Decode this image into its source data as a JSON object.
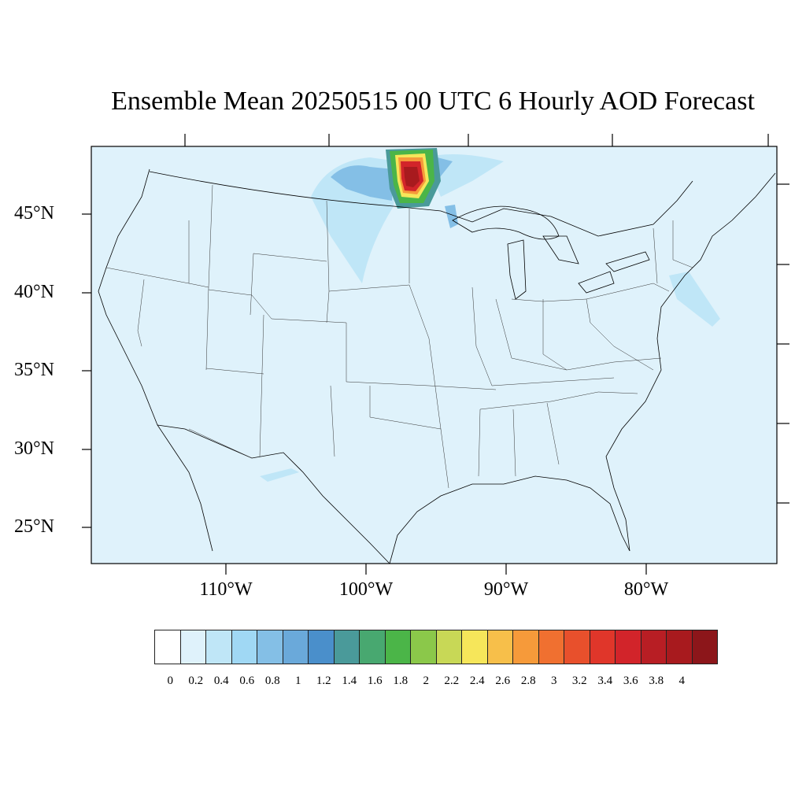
{
  "title": "Ensemble Mean 20250515 00 UTC 6 Hourly AOD Forecast",
  "latitude_labels": [
    "45°N",
    "40°N",
    "35°N",
    "30°N",
    "25°N"
  ],
  "longitude_labels": [
    "110°W",
    "100°W",
    "90°W",
    "80°W"
  ],
  "colorbar": {
    "ticks": [
      "0",
      "0.2",
      "0.4",
      "0.6",
      "0.8",
      "1",
      "1.2",
      "1.4",
      "1.6",
      "1.8",
      "2",
      "2.2",
      "2.4",
      "2.6",
      "2.8",
      "3",
      "3.2",
      "3.4",
      "3.6",
      "3.8",
      "4"
    ],
    "colors": [
      "#ffffff",
      "#dff2fb",
      "#bfe6f7",
      "#a0d8f4",
      "#84bfe6",
      "#6aa9da",
      "#4a8fcb",
      "#4a9a9a",
      "#48a870",
      "#4bb548",
      "#8bc84a",
      "#c8d856",
      "#f6e65a",
      "#f7bf4a",
      "#f69a3a",
      "#f07030",
      "#e8502c",
      "#e0362a",
      "#d2242a",
      "#b81e24",
      "#a81a1e",
      "#8c161a"
    ]
  },
  "map": {
    "background_color": "#dff2fb",
    "plume_colors": {
      "light": "#bfe6f7",
      "mid": "#84bfe6",
      "teal": "#4a9a9a",
      "green": "#4bb548",
      "yellow": "#f6e65a",
      "orange": "#f69a3a",
      "red": "#d2242a",
      "darkred": "#a81a1e"
    }
  }
}
